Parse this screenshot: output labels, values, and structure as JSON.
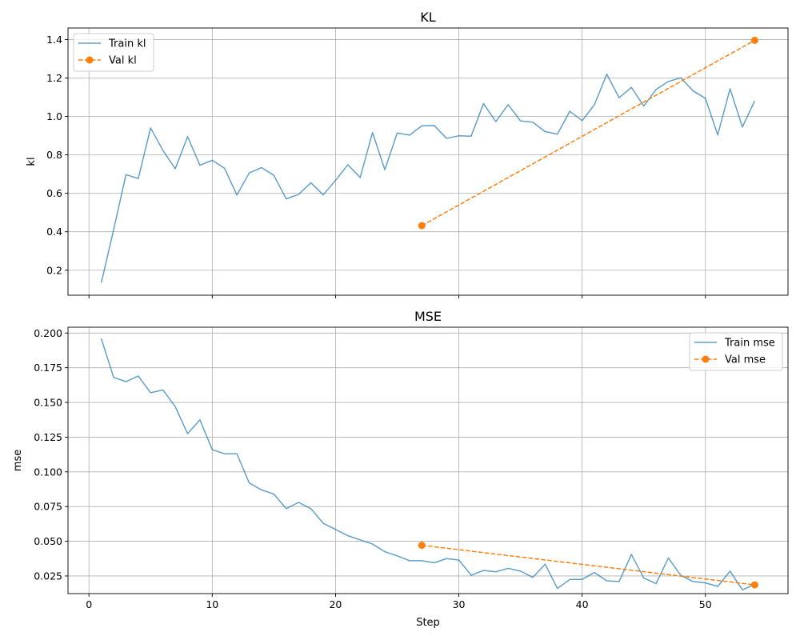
{
  "chart_data": [
    {
      "type": "line",
      "title": "KL",
      "xlabel": "",
      "ylabel": "kl",
      "xlim": [
        -1.7,
        56.7
      ],
      "ylim": [
        0.07,
        1.46
      ],
      "xticks": [
        0,
        10,
        20,
        30,
        40,
        50
      ],
      "show_xtick_labels": false,
      "yticks": [
        0.2,
        0.4,
        0.6,
        0.8,
        1.0,
        1.2,
        1.4
      ],
      "ytick_labels": [
        "0.2",
        "0.4",
        "0.6",
        "0.8",
        "1.0",
        "1.2",
        "1.4"
      ],
      "grid": true,
      "legend_position": "upper-left",
      "series": [
        {
          "name": "Train kl",
          "style": "solid",
          "color": "#1f77b4",
          "x": [
            1,
            2,
            3,
            4,
            5,
            6,
            7,
            8,
            9,
            10,
            11,
            12,
            13,
            14,
            15,
            16,
            17,
            18,
            19,
            20,
            21,
            22,
            23,
            24,
            25,
            26,
            27,
            28,
            29,
            30,
            31,
            32,
            33,
            34,
            35,
            36,
            37,
            38,
            39,
            40,
            41,
            42,
            43,
            44,
            45,
            46,
            47,
            48,
            49,
            50,
            51,
            52,
            53,
            54
          ],
          "y": [
            0.135,
            0.41,
            0.697,
            0.677,
            0.94,
            0.823,
            0.728,
            0.895,
            0.746,
            0.772,
            0.73,
            0.591,
            0.706,
            0.734,
            0.693,
            0.571,
            0.594,
            0.655,
            0.592,
            0.667,
            0.749,
            0.682,
            0.916,
            0.723,
            0.914,
            0.903,
            0.951,
            0.953,
            0.886,
            0.899,
            0.897,
            1.067,
            0.973,
            1.061,
            0.977,
            0.97,
            0.921,
            0.908,
            1.027,
            0.978,
            1.061,
            1.22,
            1.097,
            1.151,
            1.054,
            1.14,
            1.182,
            1.201,
            1.133,
            1.094,
            0.904,
            1.144,
            0.945,
            1.081
          ]
        },
        {
          "name": "Val kl",
          "style": "dashed",
          "color": "#ff7f0e",
          "x": [
            27,
            54
          ],
          "y": [
            0.432,
            1.396
          ]
        }
      ]
    },
    {
      "type": "line",
      "title": "MSE",
      "xlabel": "Step",
      "ylabel": "mse",
      "xlim": [
        -1.7,
        56.7
      ],
      "ylim": [
        0.0123,
        0.2042
      ],
      "xticks": [
        0,
        10,
        20,
        30,
        40,
        50
      ],
      "xtick_labels": [
        "0",
        "10",
        "20",
        "30",
        "40",
        "50"
      ],
      "show_xtick_labels": true,
      "yticks": [
        0.025,
        0.05,
        0.075,
        0.1,
        0.125,
        0.15,
        0.175,
        0.2
      ],
      "ytick_labels": [
        "0.025",
        "0.050",
        "0.075",
        "0.100",
        "0.125",
        "0.150",
        "0.175",
        "0.200"
      ],
      "grid": true,
      "legend_position": "upper-right",
      "series": [
        {
          "name": "Train mse",
          "style": "solid",
          "color": "#1f77b4",
          "x": [
            1,
            2,
            3,
            4,
            5,
            6,
            7,
            8,
            9,
            10,
            11,
            12,
            13,
            14,
            15,
            16,
            17,
            18,
            19,
            20,
            21,
            22,
            23,
            24,
            25,
            26,
            27,
            28,
            29,
            30,
            31,
            32,
            33,
            34,
            35,
            36,
            37,
            38,
            39,
            40,
            41,
            42,
            43,
            44,
            45,
            46,
            47,
            48,
            49,
            50,
            51,
            52,
            53,
            54
          ],
          "y": [
            0.196,
            0.168,
            0.165,
            0.169,
            0.157,
            0.159,
            0.147,
            0.1275,
            0.1375,
            0.116,
            0.113,
            0.113,
            0.092,
            0.087,
            0.084,
            0.0735,
            0.078,
            0.0735,
            0.063,
            0.0585,
            0.054,
            0.051,
            0.048,
            0.0425,
            0.0395,
            0.036,
            0.036,
            0.0345,
            0.0375,
            0.0365,
            0.0255,
            0.029,
            0.028,
            0.0305,
            0.0285,
            0.024,
            0.0335,
            0.016,
            0.0225,
            0.0225,
            0.0275,
            0.0215,
            0.021,
            0.0405,
            0.0235,
            0.0195,
            0.038,
            0.0255,
            0.021,
            0.02,
            0.0175,
            0.0285,
            0.015,
            0.019
          ]
        },
        {
          "name": "Val mse",
          "style": "dashed",
          "color": "#ff7f0e",
          "x": [
            27,
            54
          ],
          "y": [
            0.0471,
            0.0186
          ]
        }
      ]
    }
  ]
}
